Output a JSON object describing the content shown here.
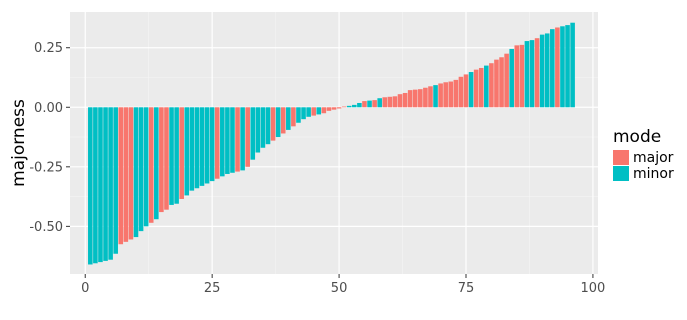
{
  "chart_data": {
    "type": "bar",
    "title": "",
    "xlabel": "",
    "ylabel": "majorness",
    "xlim": [
      -3,
      101
    ],
    "ylim": [
      -0.7,
      0.4
    ],
    "x_ticks": [
      0,
      25,
      50,
      75,
      100
    ],
    "y_ticks": [
      -0.5,
      -0.25,
      0.0,
      0.25
    ],
    "x_tick_labels": [
      "0",
      "25",
      "50",
      "75",
      "100"
    ],
    "y_tick_labels": [
      "-0.50",
      "-0.25",
      "0.00",
      "0.25"
    ],
    "grid": true,
    "legend": {
      "title": "mode",
      "position": "right",
      "entries": [
        {
          "label": "major",
          "color": "#F8766D"
        },
        {
          "label": "minor",
          "color": "#00BFC4"
        }
      ]
    },
    "colors": {
      "major": "#F8766D",
      "minor": "#00BFC4",
      "panel": "#EBEBEB",
      "grid_major": "#FFFFFF",
      "grid_minor": "#F5F5F5"
    },
    "x": [
      1,
      2,
      3,
      4,
      5,
      6,
      7,
      8,
      9,
      10,
      11,
      12,
      13,
      14,
      15,
      16,
      17,
      18,
      19,
      20,
      21,
      22,
      23,
      24,
      25,
      26,
      27,
      28,
      29,
      30,
      31,
      32,
      33,
      34,
      35,
      36,
      37,
      38,
      39,
      40,
      41,
      42,
      43,
      44,
      45,
      46,
      47,
      48,
      49,
      50,
      51,
      52,
      53,
      54,
      55,
      56,
      57,
      58,
      59,
      60,
      61,
      62,
      63,
      64,
      65,
      66,
      67,
      68,
      69,
      70,
      71,
      72,
      73,
      74,
      75,
      76,
      77,
      78,
      79,
      80,
      81,
      82,
      83,
      84,
      85,
      86,
      87,
      88,
      89,
      90,
      91,
      92,
      93,
      94,
      95,
      96
    ],
    "values": [
      -0.66,
      -0.655,
      -0.65,
      -0.645,
      -0.64,
      -0.615,
      -0.575,
      -0.565,
      -0.555,
      -0.545,
      -0.52,
      -0.5,
      -0.485,
      -0.47,
      -0.44,
      -0.43,
      -0.41,
      -0.405,
      -0.385,
      -0.37,
      -0.35,
      -0.34,
      -0.33,
      -0.32,
      -0.31,
      -0.3,
      -0.29,
      -0.28,
      -0.275,
      -0.27,
      -0.265,
      -0.25,
      -0.22,
      -0.19,
      -0.17,
      -0.155,
      -0.14,
      -0.125,
      -0.11,
      -0.095,
      -0.08,
      -0.065,
      -0.05,
      -0.04,
      -0.035,
      -0.03,
      -0.025,
      -0.015,
      -0.01,
      -0.005,
      0.003,
      0.006,
      0.01,
      0.018,
      0.026,
      0.028,
      0.03,
      0.038,
      0.042,
      0.044,
      0.046,
      0.055,
      0.06,
      0.072,
      0.074,
      0.076,
      0.082,
      0.088,
      0.093,
      0.1,
      0.105,
      0.108,
      0.115,
      0.128,
      0.138,
      0.148,
      0.158,
      0.165,
      0.175,
      0.185,
      0.2,
      0.21,
      0.225,
      0.245,
      0.26,
      0.262,
      0.278,
      0.282,
      0.29,
      0.305,
      0.31,
      0.328,
      0.335,
      0.34,
      0.345,
      0.355
    ],
    "mode": [
      "minor",
      "minor",
      "minor",
      "minor",
      "minor",
      "minor",
      "major",
      "major",
      "major",
      "minor",
      "minor",
      "minor",
      "major",
      "minor",
      "major",
      "major",
      "minor",
      "minor",
      "major",
      "minor",
      "minor",
      "minor",
      "minor",
      "minor",
      "minor",
      "major",
      "minor",
      "minor",
      "minor",
      "major",
      "minor",
      "major",
      "minor",
      "minor",
      "minor",
      "minor",
      "major",
      "minor",
      "major",
      "minor",
      "major",
      "minor",
      "minor",
      "minor",
      "major",
      "minor",
      "major",
      "major",
      "major",
      "major",
      "major",
      "minor",
      "minor",
      "minor",
      "major",
      "minor",
      "major",
      "minor",
      "major",
      "major",
      "major",
      "major",
      "major",
      "major",
      "major",
      "major",
      "major",
      "major",
      "minor",
      "major",
      "major",
      "major",
      "major",
      "major",
      "major",
      "minor",
      "major",
      "major",
      "minor",
      "major",
      "major",
      "major",
      "major",
      "minor",
      "major",
      "major",
      "minor",
      "minor",
      "major",
      "minor",
      "minor",
      "minor",
      "major",
      "minor",
      "minor",
      "minor"
    ]
  }
}
